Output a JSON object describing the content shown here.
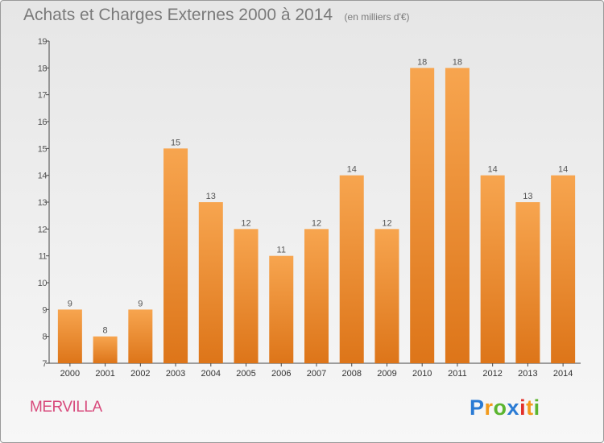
{
  "header": {
    "title": "Achats et Charges Externes 2000 à 2014",
    "unit": "(en milliers d'€)"
  },
  "footer": {
    "commune": "MERVILLA",
    "logo_text": "Proxiti",
    "logo_colors": [
      "#2a7bd4",
      "#f39a1b",
      "#5bb52f",
      "#2a7bd4",
      "#e2302a",
      "#f39a1b",
      "#5bb52f"
    ]
  },
  "colors": {
    "bar_top": "#f7a54f",
    "bar_bottom": "#dd7519",
    "axis": "#444444",
    "text": "#555555"
  },
  "chart_data": {
    "type": "bar",
    "title": "Achats et Charges Externes 2000 à 2014",
    "subtitle": "(en milliers d'€)",
    "categories": [
      "2000",
      "2001",
      "2002",
      "2003",
      "2004",
      "2005",
      "2006",
      "2007",
      "2008",
      "2009",
      "2010",
      "2011",
      "2012",
      "2013",
      "2014"
    ],
    "values": [
      9,
      8,
      9,
      15,
      13,
      12,
      11,
      12,
      14,
      12,
      18,
      18,
      14,
      13,
      14
    ],
    "data_labels": [
      "9",
      "8",
      "9",
      "15",
      "13",
      "12",
      "11",
      "12",
      "14",
      "12",
      "18",
      "18",
      "14",
      "13",
      "14"
    ],
    "yticks": [
      "7",
      "8",
      "9",
      "10",
      "11",
      "12",
      "13",
      "14",
      "15",
      "16",
      "17",
      "18",
      "19"
    ],
    "ylim": [
      7,
      19
    ],
    "xlabel": "",
    "ylabel": "",
    "grid": false,
    "legend": "none"
  }
}
